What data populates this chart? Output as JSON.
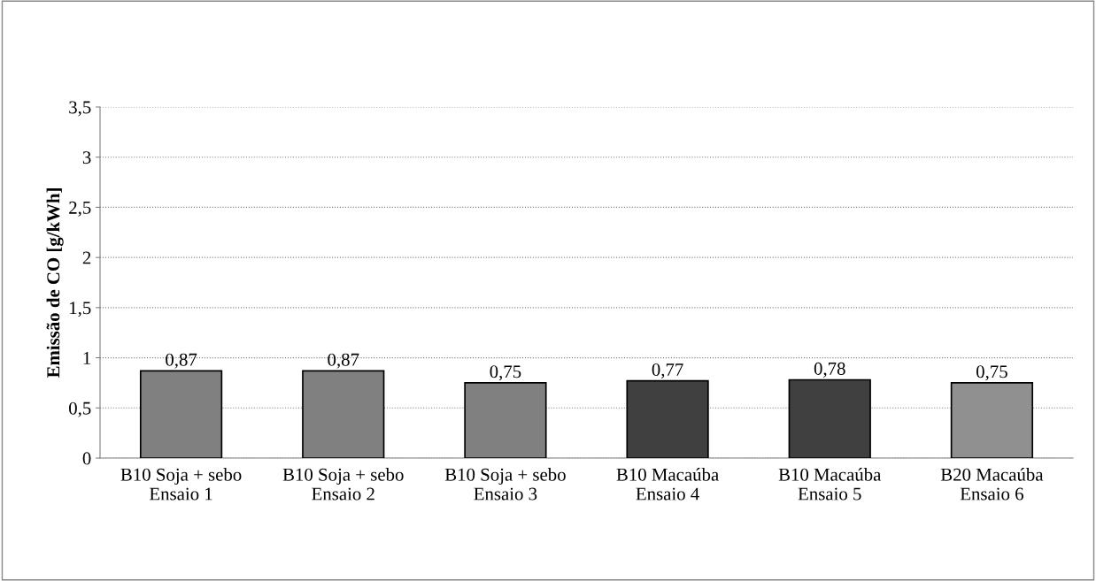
{
  "chart_data": {
    "type": "bar",
    "categories": [
      "B10 Soja + sebo\nEnsaio 1",
      "B10 Soja + sebo\nEnsaio 2",
      "B10 Soja + sebo\nEnsaio 3",
      "B10 Macaúba\nEnsaio 4",
      "B10 Macaúba\nEnsaio 5",
      "B20 Macaúba\nEnsaio 6"
    ],
    "values": [
      0.87,
      0.87,
      0.75,
      0.77,
      0.78,
      0.75
    ],
    "value_labels": [
      "0,87",
      "0,87",
      "0,75",
      "0,77",
      "0,78",
      "0,75"
    ],
    "colors": [
      "#808080",
      "#808080",
      "#808080",
      "#404040",
      "#404040",
      "#909090"
    ],
    "ylabel": "Emissão de CO [g/kWh]",
    "ylim": [
      0,
      3.5
    ],
    "yticks": [
      0,
      {
        "value": 0.5,
        "label": "0,5"
      },
      1,
      {
        "value": 1.5,
        "label": "1,5"
      },
      2,
      {
        "value": 2.5,
        "label": "2,5"
      },
      3,
      {
        "value": 3.5,
        "label": "3,5"
      }
    ],
    "grid": "y",
    "legend": false
  }
}
